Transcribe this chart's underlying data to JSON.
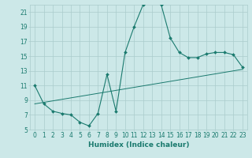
{
  "title": "",
  "xlabel": "Humidex (Indice chaleur)",
  "background_color": "#cce8e8",
  "grid_color": "#aacccc",
  "line_color": "#1a7a6e",
  "xlim": [
    -0.5,
    23.5
  ],
  "ylim": [
    5,
    22
  ],
  "yticks": [
    5,
    7,
    9,
    11,
    13,
    15,
    17,
    19,
    21
  ],
  "xticks": [
    0,
    1,
    2,
    3,
    4,
    5,
    6,
    7,
    8,
    9,
    10,
    11,
    12,
    13,
    14,
    15,
    16,
    17,
    18,
    19,
    20,
    21,
    22,
    23
  ],
  "xtick_labels": [
    "0",
    "1",
    "2",
    "3",
    "4",
    "5",
    "6",
    "7",
    "8",
    "9",
    "10",
    "11",
    "12",
    "13",
    "14",
    "15",
    "16",
    "17",
    "18",
    "19",
    "20",
    "21",
    "22",
    "23"
  ],
  "curve1_x": [
    0,
    1,
    2,
    3,
    4,
    5,
    6,
    7,
    8,
    9,
    10,
    11,
    12,
    13,
    14,
    15,
    16,
    17,
    18,
    19,
    20,
    21,
    22,
    23
  ],
  "curve1_y": [
    11.0,
    8.5,
    7.5,
    7.2,
    7.0,
    6.0,
    5.5,
    7.2,
    12.5,
    7.5,
    15.5,
    19.0,
    22.0,
    22.5,
    22.0,
    17.5,
    15.5,
    14.8,
    14.8,
    15.3,
    15.5,
    15.5,
    15.2,
    13.5
  ],
  "curve2_x": [
    0,
    23
  ],
  "curve2_y": [
    8.5,
    13.2
  ],
  "marker": "D",
  "marker_size": 2.0,
  "font_size_tick": 5.5,
  "font_size_label": 6.5,
  "linewidth1": 0.8,
  "linewidth2": 0.7
}
